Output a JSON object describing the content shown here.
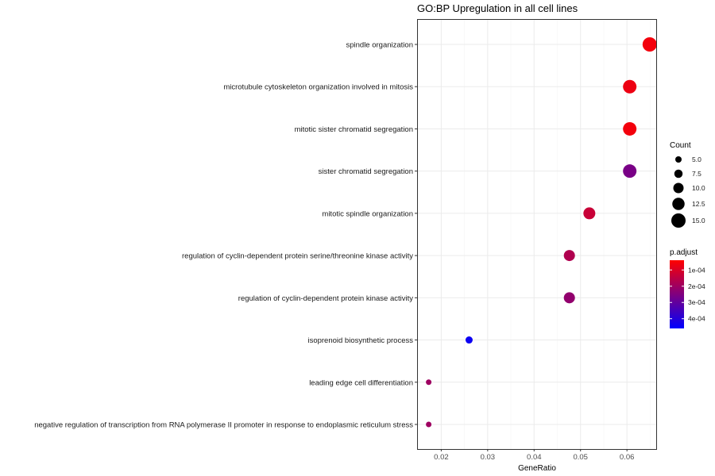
{
  "chart_data": {
    "type": "scatter",
    "title": "GO:BP Upregulation in all cell lines",
    "xlabel": "GeneRatio",
    "ylabel": "",
    "xlim": [
      0.0148,
      0.0663
    ],
    "xticks": [
      0.02,
      0.03,
      0.04,
      0.05,
      0.06
    ],
    "xtick_labels": [
      "0.02",
      "0.03",
      "0.04",
      "0.05",
      "0.06"
    ],
    "grid": true,
    "categories": [
      "spindle organization",
      "microtubule cytoskeleton organization involved in mitosis",
      "mitotic sister chromatid segregation",
      "sister chromatid segregation",
      "mitotic spindle organization",
      "regulation of cyclin-dependent protein serine/threonine kinase activity",
      "regulation of cyclin-dependent protein kinase activity",
      "isoprenoid biosynthetic process",
      "leading edge cell differentiation",
      "negative regulation of transcription from RNA polymerase II promoter in response to endoplasmic reticulum stress"
    ],
    "points": [
      {
        "category": "spindle organization",
        "gene_ratio": 0.0649,
        "count": 15,
        "p_adjust": 6e-05
      },
      {
        "category": "microtubule cytoskeleton organization involved in mitosis",
        "gene_ratio": 0.0606,
        "count": 14,
        "p_adjust": 7e-05
      },
      {
        "category": "mitotic sister chromatid segregation",
        "gene_ratio": 0.0606,
        "count": 14,
        "p_adjust": 6e-05
      },
      {
        "category": "sister chromatid segregation",
        "gene_ratio": 0.0606,
        "count": 14,
        "p_adjust": 0.00026
      },
      {
        "category": "mitotic spindle organization",
        "gene_ratio": 0.0519,
        "count": 12,
        "p_adjust": 0.00013
      },
      {
        "category": "regulation of cyclin-dependent protein serine/threonine kinase activity",
        "gene_ratio": 0.0476,
        "count": 11,
        "p_adjust": 0.00017
      },
      {
        "category": "regulation of cyclin-dependent protein kinase activity",
        "gene_ratio": 0.0476,
        "count": 11,
        "p_adjust": 0.00022
      },
      {
        "category": "isoprenoid biosynthetic process",
        "gene_ratio": 0.026,
        "count": 6,
        "p_adjust": 0.00044
      },
      {
        "category": "leading edge cell differentiation",
        "gene_ratio": 0.0173,
        "count": 4,
        "p_adjust": 0.0002
      },
      {
        "category": "negative regulation of transcription from RNA polymerase II promoter in response to endoplasmic reticulum stress",
        "gene_ratio": 0.0173,
        "count": 4,
        "p_adjust": 0.0002
      }
    ],
    "size_legend": {
      "title": "Count",
      "values": [
        5.0,
        7.5,
        10.0,
        12.5,
        15.0
      ],
      "labels": [
        "5.0",
        "7.5",
        "10.0",
        "12.5",
        "15.0"
      ]
    },
    "color_legend": {
      "title": "p.adjust",
      "min": 4e-05,
      "max": 0.00046,
      "ticks": [
        0.0001,
        0.0002,
        0.0003,
        0.0004
      ],
      "labels": [
        "1e-04",
        "2e-04",
        "3e-04",
        "4e-04"
      ],
      "color_low_p": "#ff0000",
      "color_high_p": "#0000ff"
    },
    "colors": {
      "panel_border": "#333333",
      "grid_major": "#ebebeb",
      "grid_minor": "#f5f5f5"
    }
  }
}
